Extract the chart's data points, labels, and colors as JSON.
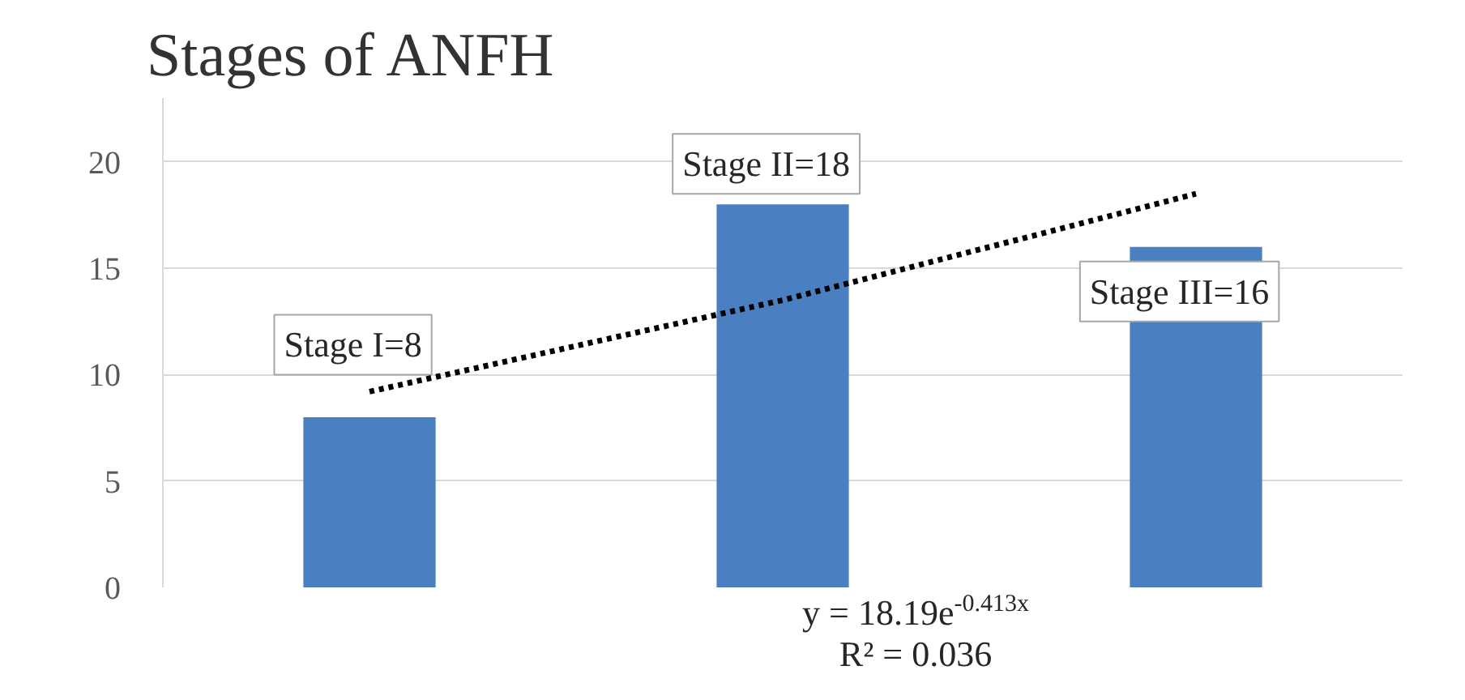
{
  "chart_data": {
    "type": "bar",
    "title": "Stages of ANFH",
    "categories": [
      null,
      null,
      null
    ],
    "series": [
      {
        "color": "#4a7fc1",
        "values": [
          8,
          18,
          16
        ],
        "value_labels": [
          "Stage I=8",
          "Stage II=18",
          "Stage III=16"
        ]
      },
      {
        "type": "line",
        "color": "#000000",
        "line_style": "dotted",
        "values": [
          9.2,
          13.5,
          18.5
        ]
      }
    ],
    "ylim": [
      0,
      23
    ],
    "yticks": [
      0,
      5,
      10,
      15,
      20
    ],
    "grid": "y",
    "annotations": [
      "y = 18.19e$^{-0.413x}$",
      "R² = 0.036"
    ]
  }
}
